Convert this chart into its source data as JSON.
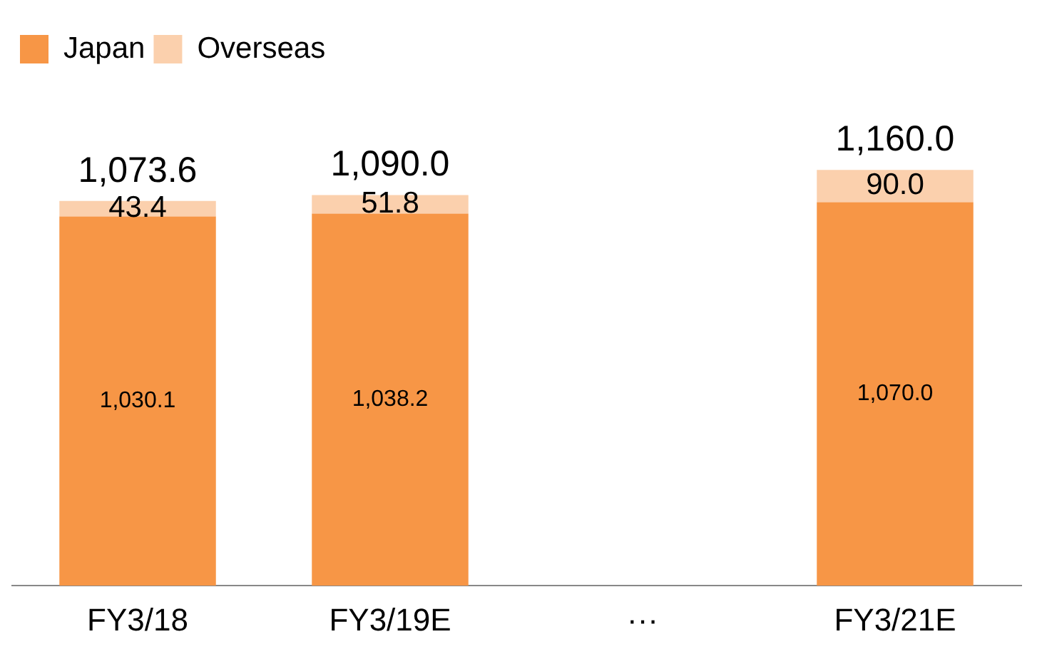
{
  "chart_data": {
    "type": "bar",
    "stacked": true,
    "categories": [
      "FY3/18",
      "FY3/19E",
      "···",
      "FY3/21E"
    ],
    "series": [
      {
        "name": "Japan",
        "color": "#f79646",
        "values": [
          1030.1,
          1038.2,
          null,
          1070.0
        ],
        "value_labels": [
          "1,030.1",
          "1,038.2",
          null,
          "1,070.0"
        ]
      },
      {
        "name": "Overseas",
        "color": "#fbd0ad",
        "values": [
          43.4,
          51.8,
          null,
          90.0
        ],
        "value_labels": [
          "43.4",
          "51.8",
          null,
          "90.0"
        ]
      }
    ],
    "totals": [
      "1,073.6",
      "1,090.0",
      null,
      "1,160.0"
    ],
    "legend": "top left",
    "grid": false,
    "tick_labels": "x"
  }
}
